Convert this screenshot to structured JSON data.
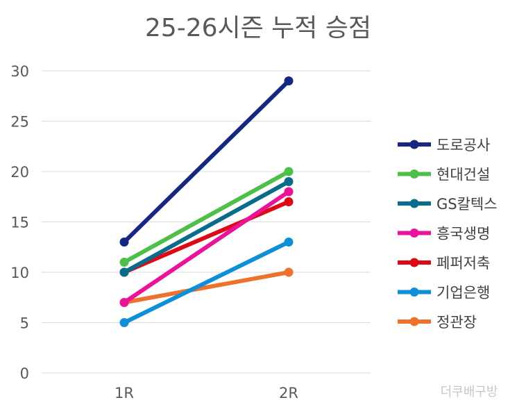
{
  "chart_data": {
    "type": "line",
    "title": "25-26시즌 누적 승점",
    "categories": [
      "1R",
      "2R"
    ],
    "ylim": [
      0,
      30
    ],
    "yticks": [
      0,
      5,
      10,
      15,
      20,
      25,
      30
    ],
    "grid": true,
    "legend_position": "right",
    "xlabel": "",
    "ylabel": "",
    "series": [
      {
        "name": "도로공사",
        "color": "#14287f",
        "values": [
          13,
          29
        ]
      },
      {
        "name": "현대건설",
        "color": "#4fbf4a",
        "values": [
          11,
          20
        ]
      },
      {
        "name": "GS칼텍스",
        "color": "#0b6b8c",
        "values": [
          10,
          19
        ]
      },
      {
        "name": "흥국생명",
        "color": "#e8159a",
        "values": [
          7,
          18
        ]
      },
      {
        "name": "페퍼저축",
        "color": "#dc0a17",
        "values": [
          10,
          17
        ]
      },
      {
        "name": "기업은행",
        "color": "#0e8fd6",
        "values": [
          5,
          13
        ]
      },
      {
        "name": "정관장",
        "color": "#ec722e",
        "values": [
          7,
          10
        ]
      }
    ]
  },
  "watermark": "더쿠배구방"
}
